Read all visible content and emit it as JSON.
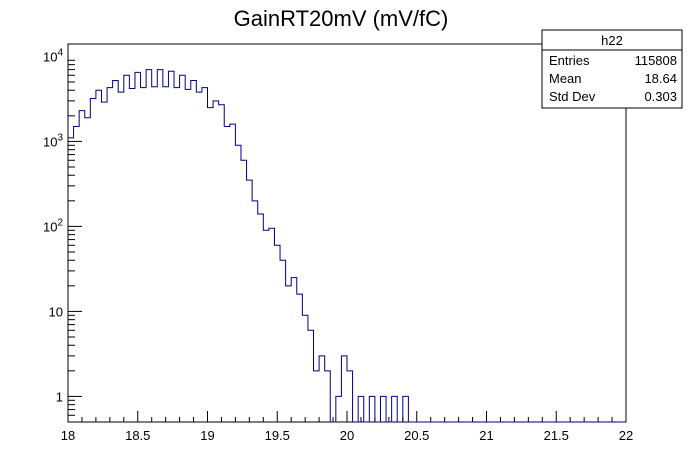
{
  "chart_data": {
    "type": "histogram",
    "title": "GainRT20mV (mV/fC)",
    "xlabel": "",
    "ylabel": "",
    "xlim": [
      18,
      22
    ],
    "ylim": [
      0.5,
      14000
    ],
    "yscale": "log",
    "grid": false,
    "line_color": "#000080",
    "bin_width": 0.04,
    "x_ticks": [
      "18",
      "18.5",
      "19",
      "19.5",
      "20",
      "20.5",
      "21",
      "21.5",
      "22"
    ],
    "y_ticks": [
      {
        "value": 1,
        "label": "1"
      },
      {
        "value": 10,
        "label": "10"
      },
      {
        "value": 100,
        "label": "10",
        "exp": "2"
      },
      {
        "value": 1000,
        "label": "10",
        "exp": "3"
      },
      {
        "value": 10000,
        "label": "10",
        "exp": "4"
      }
    ],
    "bins_low_edge": 18.0,
    "counts": [
      1100,
      1500,
      2300,
      1900,
      3200,
      4000,
      2900,
      4300,
      5200,
      3800,
      6000,
      4200,
      6500,
      4300,
      7000,
      4400,
      7000,
      4400,
      6700,
      4300,
      6000,
      4100,
      5200,
      3800,
      4300,
      2500,
      3000,
      2700,
      1500,
      1600,
      900,
      600,
      350,
      200,
      140,
      90,
      95,
      60,
      40,
      20,
      25,
      16,
      9,
      6,
      2,
      3,
      2,
      0,
      1,
      3,
      2,
      0,
      1,
      0,
      1,
      0,
      1,
      0,
      1,
      0,
      1,
      0,
      0,
      0,
      0,
      0,
      0,
      0,
      0,
      0,
      0,
      0,
      0,
      0,
      0,
      0,
      0,
      0,
      0,
      0,
      0,
      0,
      0,
      0,
      0,
      0,
      0,
      0,
      0,
      0,
      0,
      0,
      0,
      0,
      0,
      0,
      0,
      0,
      0,
      0
    ],
    "stats": {
      "name": "h22",
      "entries_label": "Entries",
      "entries": "115808",
      "mean_label": "Mean",
      "mean": "18.64",
      "stddev_label": "Std Dev",
      "stddev": "0.303"
    }
  }
}
